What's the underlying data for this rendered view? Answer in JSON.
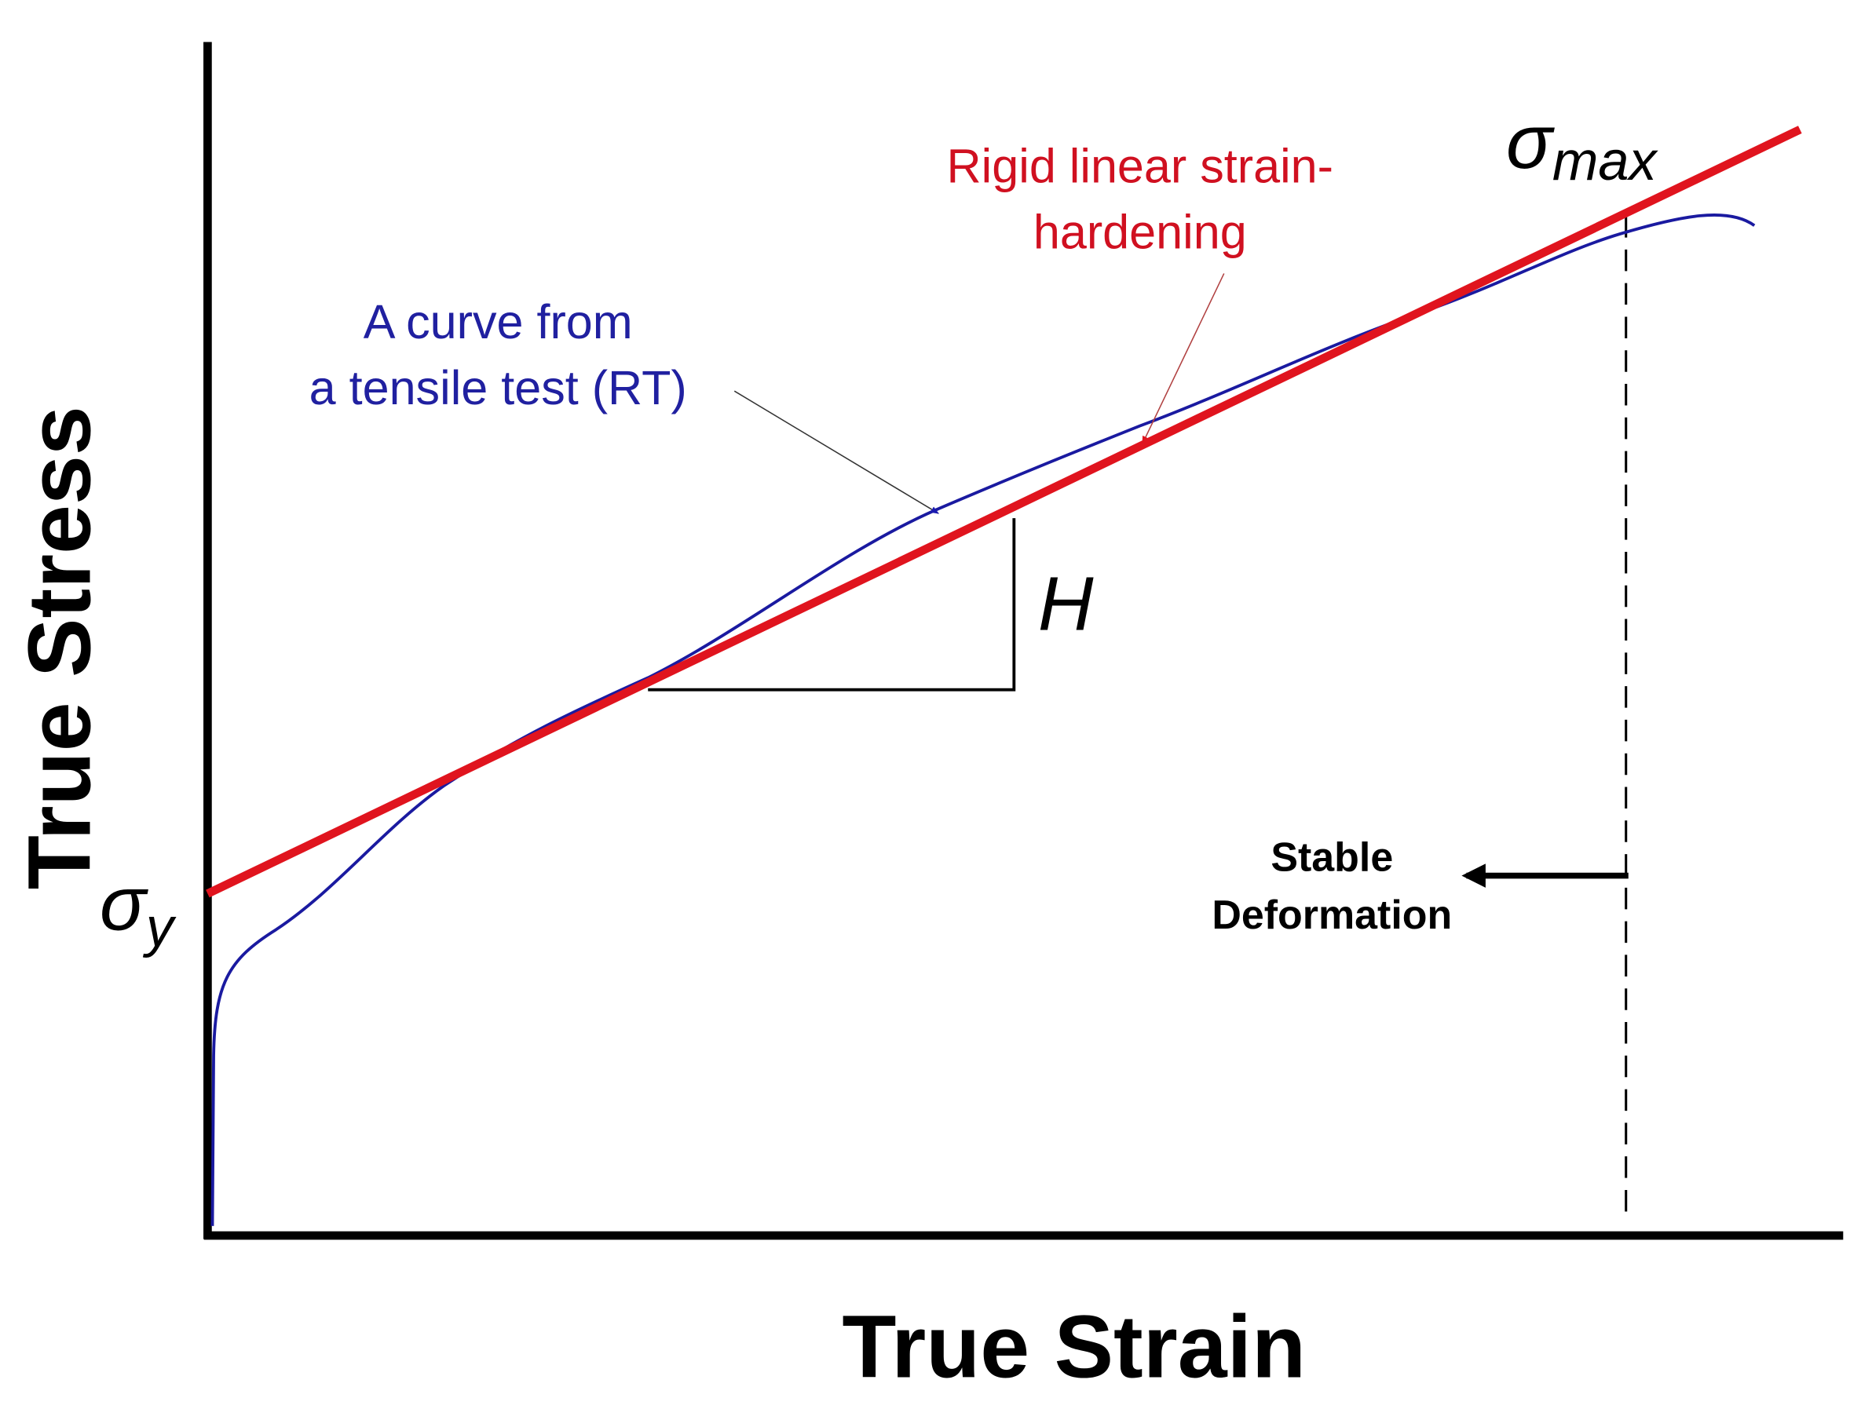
{
  "axes": {
    "x_label": "True Strain",
    "y_label": "True Stress"
  },
  "annotations": {
    "tensile_curve": [
      "A curve from",
      "a tensile test (RT)"
    ],
    "linear_hardening": [
      "Rigid linear strain-",
      "hardening"
    ],
    "sigma_y": {
      "symbol": "σ",
      "subscript": "y"
    },
    "sigma_max": {
      "symbol": "σ",
      "subscript": "max"
    },
    "slope": "H",
    "stable": [
      "Stable",
      "Deformation"
    ]
  }
}
